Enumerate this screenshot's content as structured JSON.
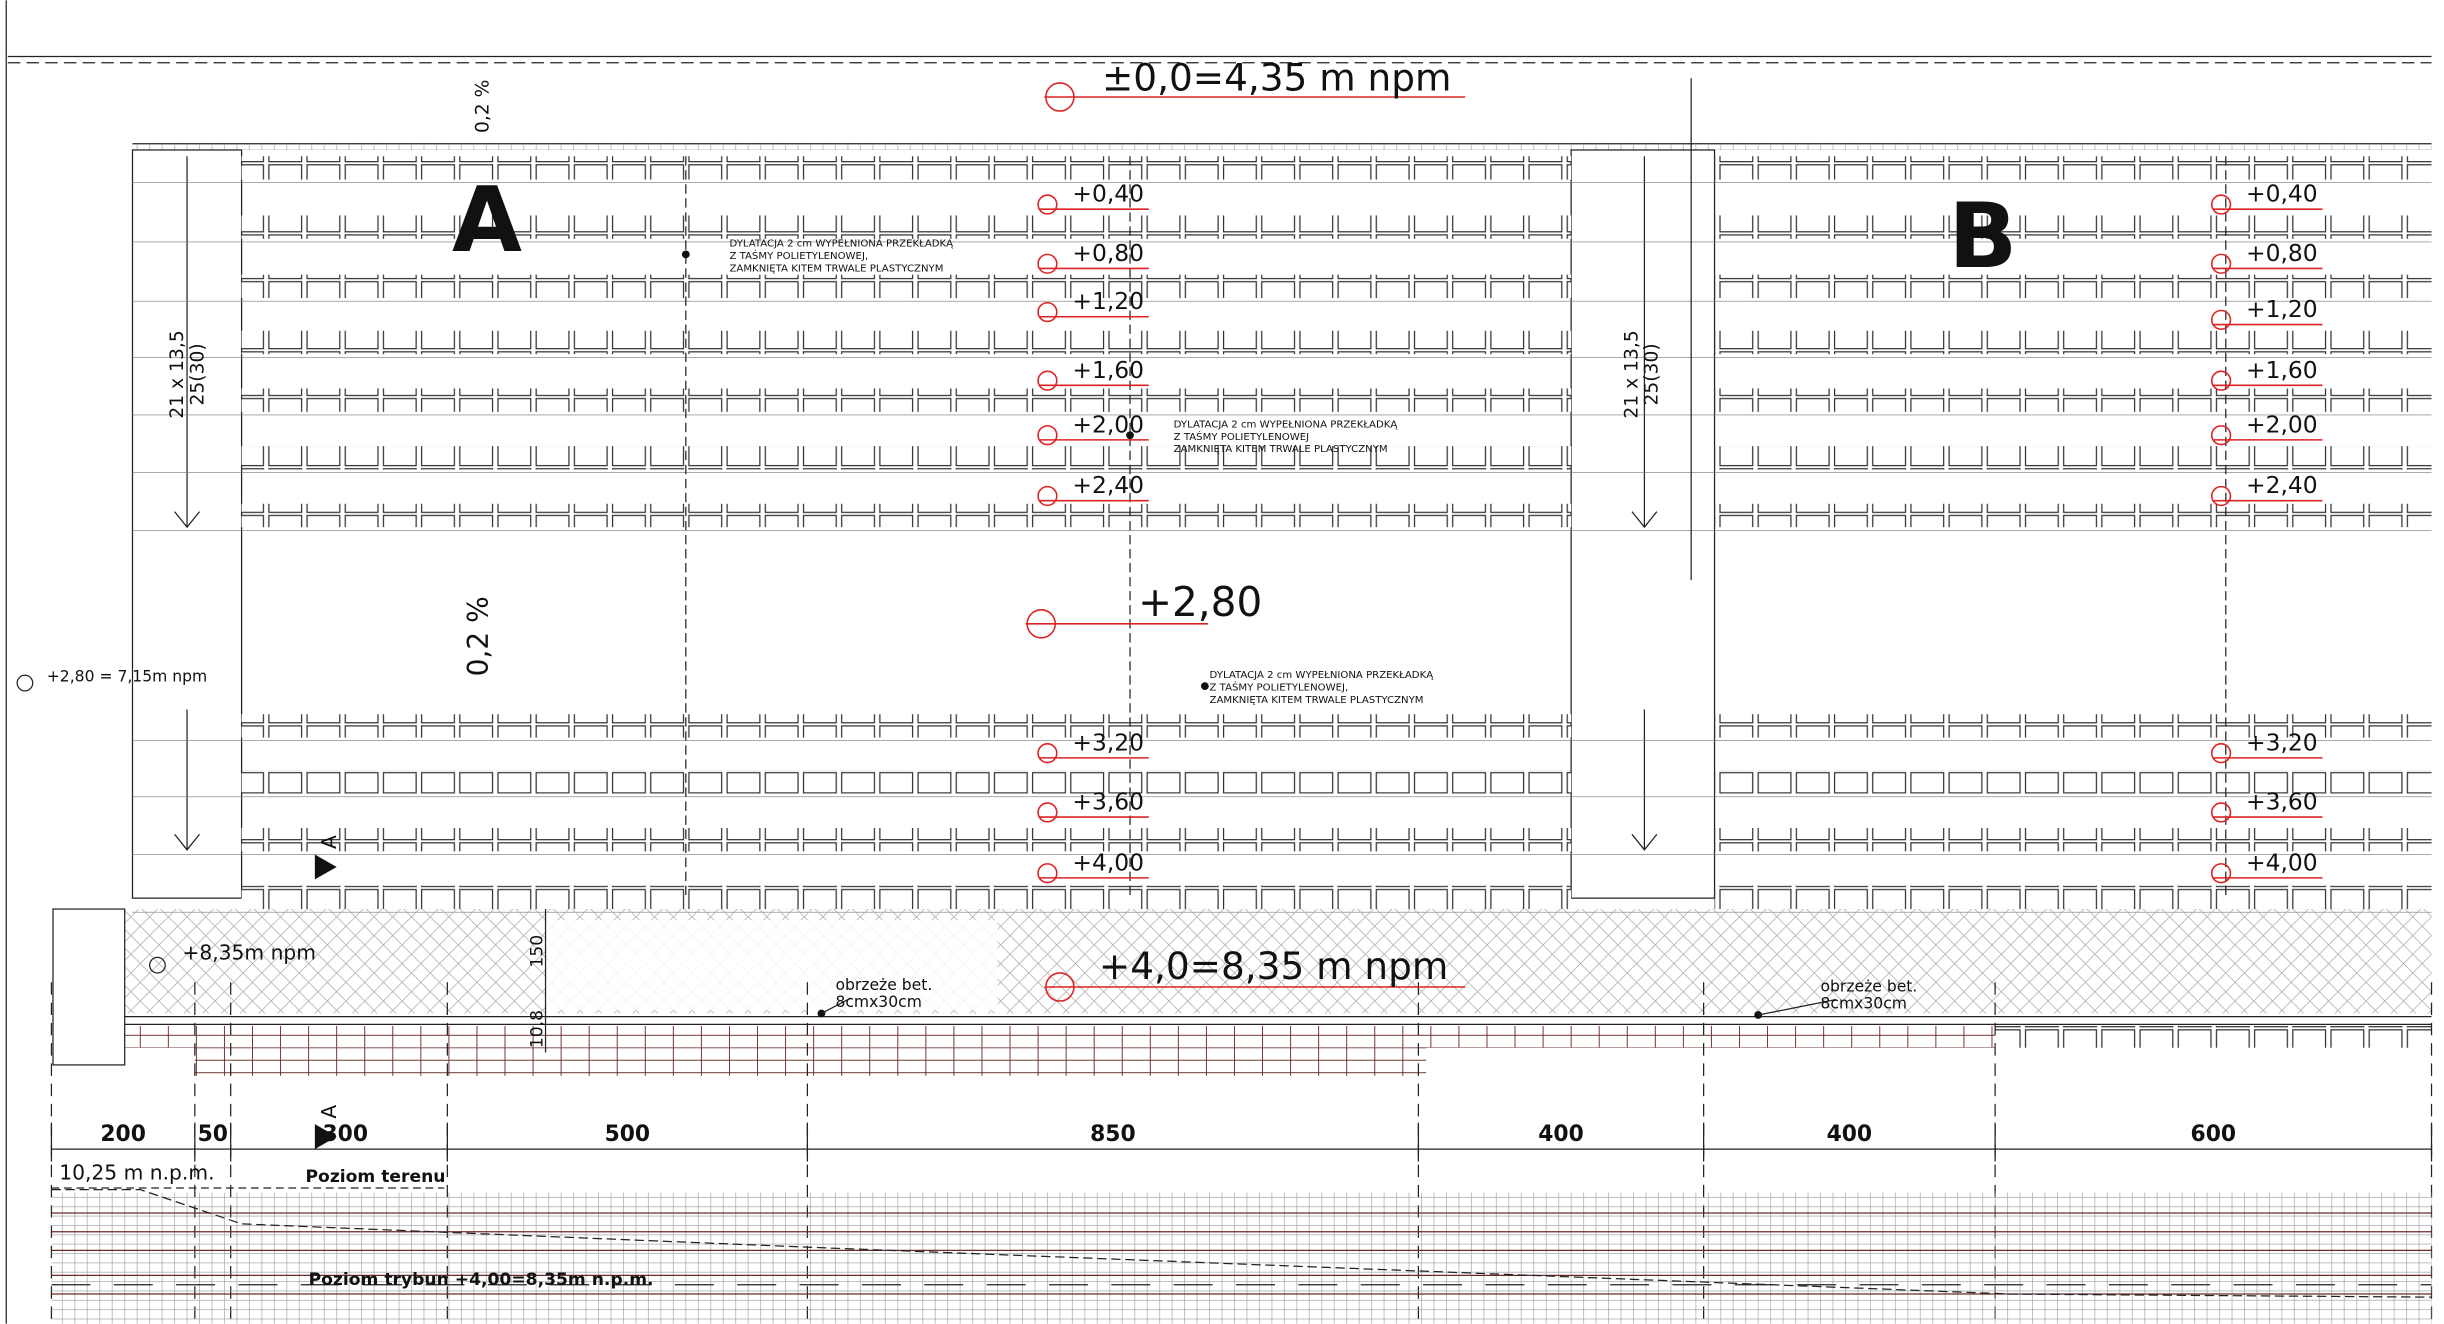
{
  "header": {
    "level": "±0,0=4,35 m npm",
    "slope": "0,2 %"
  },
  "sectors": [
    {
      "label": "A",
      "levels": [
        "+0,40",
        "+0,80",
        "+1,20",
        "+1,60",
        "+2,00",
        "+2,40",
        "+3,20",
        "+3,60",
        "+4,00"
      ]
    },
    {
      "label": "B",
      "levels": [
        "+0,40",
        "+0,80",
        "+1,20",
        "+1,60",
        "+2,00",
        "+2,40",
        "+3,20",
        "+3,60",
        "+4,00"
      ]
    }
  ],
  "mid_level": "+2,80",
  "dilatation_notes": [
    [
      "DYLATACJA 2 cm WYPEŁNIONA PRZEKŁADKĄ",
      "Z TAŚMY POLIETYLENOWEJ,",
      "ZAMKNIĘTA KITEM TRWALE PLASTYCZNYM"
    ],
    [
      "DYLATACJA 2 cm WYPEŁNIONA PRZEKŁADKĄ",
      "Z TAŚMY POLIETYLENOWEJ",
      "ZAMKNIĘTA KITEM TRWALE PLASTYCZNYM"
    ],
    [
      "DYLATACJA 2 cm WYPEŁNIONA PRZEKŁADKĄ",
      "Z TAŚMY POLIETYLENOWEJ,",
      "ZAMKNIĘTA KITEM TRWALE PLASTYCZNYM"
    ]
  ],
  "stairs": [
    {
      "count": "21 x 13,5",
      "size": "25(30)"
    },
    {
      "count": "21 x 13,5",
      "size": "25(30)"
    }
  ],
  "slope_mid": "0,2 %",
  "side_level": "+2,80 = 7,15m npm",
  "edge_level": "+8,35m npm",
  "dims_vertical": [
    "150",
    "10,8"
  ],
  "bottom_level": "+4,0=8,35 m npm",
  "curbs": [
    [
      "obrzeże bet.",
      "8cmx30cm"
    ],
    [
      "obrzeże bet.",
      "8cmx30cm"
    ]
  ],
  "section_marks": [
    "A",
    "A"
  ],
  "dimensions": [
    "200",
    "50",
    "300",
    "500",
    "850",
    "400",
    "400",
    "600"
  ],
  "profile": {
    "top_level": "10,25 m n.p.m.",
    "ground": "Poziom terenu",
    "stands": "Poziom trybun +4,00=8,35m n.p.m."
  }
}
